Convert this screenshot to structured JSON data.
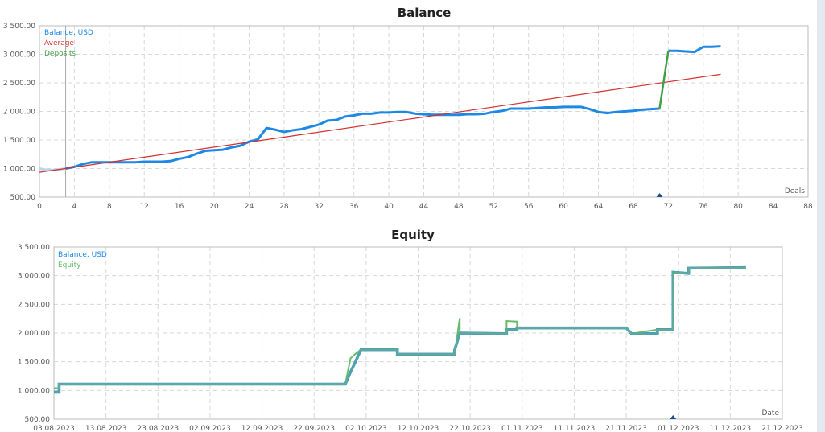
{
  "colors": {
    "balance": "#1e88e5",
    "average": "#d32f2f",
    "deposits": "#43a047",
    "equity": "#66bb6a",
    "grid": "#d8d8d8",
    "axis": "#bbbbbb"
  },
  "chart_data": [
    {
      "type": "line",
      "title": "Balance",
      "xlabel": "Deals",
      "ylabel": "",
      "xlim": [
        0,
        88
      ],
      "ylim": [
        500,
        3500
      ],
      "grid": true,
      "legend_position": "top-left",
      "x_ticks": [
        "0",
        "4",
        "8",
        "12",
        "16",
        "20",
        "24",
        "28",
        "32",
        "36",
        "40",
        "44",
        "48",
        "52",
        "56",
        "60",
        "64",
        "68",
        "72",
        "76",
        "80",
        "84",
        "88"
      ],
      "y_ticks": [
        "500.00",
        "1 000.00",
        "1 500.00",
        "2 000.00",
        "2 500.00",
        "3 000.00",
        "3 500.00"
      ],
      "legend": [
        "Balance, USD",
        "Average",
        "Deposits"
      ],
      "series": [
        {
          "name": "Balance, USD",
          "x": [
            0,
            1,
            2,
            3,
            4,
            5,
            6,
            7,
            8,
            9,
            10,
            11,
            12,
            13,
            14,
            15,
            16,
            17,
            18,
            19,
            20,
            21,
            22,
            23,
            24,
            25,
            26,
            27,
            28,
            29,
            30,
            31,
            32,
            33,
            34,
            35,
            36,
            37,
            38,
            39,
            40,
            41,
            42,
            43,
            44,
            45,
            46,
            47,
            48,
            49,
            50,
            51,
            52,
            53,
            54,
            55,
            56,
            57,
            58,
            59,
            60,
            61,
            62,
            63,
            64,
            65,
            66,
            67,
            68,
            69,
            70,
            71,
            72,
            73,
            74,
            75,
            76,
            77,
            78
          ],
          "values": [
            1000,
            970,
            980,
            1000,
            1030,
            1080,
            1110,
            1110,
            1110,
            1110,
            1110,
            1110,
            1120,
            1120,
            1120,
            1130,
            1170,
            1200,
            1260,
            1310,
            1320,
            1330,
            1370,
            1400,
            1470,
            1510,
            1710,
            1680,
            1640,
            1670,
            1690,
            1730,
            1770,
            1840,
            1850,
            1910,
            1930,
            1960,
            1960,
            1980,
            1980,
            1990,
            1990,
            1960,
            1950,
            1940,
            1940,
            1940,
            1940,
            1950,
            1950,
            1960,
            1990,
            2010,
            2050,
            2050,
            2050,
            2060,
            2070,
            2070,
            2080,
            2080,
            2080,
            2040,
            1990,
            1970,
            1990,
            2000,
            2010,
            2030,
            2040,
            2050,
            3060,
            3060,
            3050,
            3040,
            3130,
            3130,
            3140
          ]
        },
        {
          "name": "Average",
          "x": [
            0,
            78
          ],
          "values": [
            935,
            2650
          ]
        },
        {
          "name": "Deposits",
          "x": [
            71,
            72
          ],
          "values": [
            2050,
            3060
          ]
        }
      ],
      "markers": [
        {
          "x": 71,
          "shape": "triangle"
        }
      ],
      "vertical_line_x": 3
    },
    {
      "type": "line",
      "title": "Equity",
      "xlabel": "Date",
      "ylabel": "",
      "ylim": [
        500,
        3500
      ],
      "grid": true,
      "legend_position": "top-left",
      "x_ticks": [
        "03.08.2023",
        "13.08.2023",
        "23.08.2023",
        "02.09.2023",
        "12.09.2023",
        "22.09.2023",
        "02.10.2023",
        "12.10.2023",
        "22.10.2023",
        "01.11.2023",
        "11.11.2023",
        "21.11.2023",
        "01.12.2023",
        "11.12.2023",
        "21.12.2023"
      ],
      "y_ticks": [
        "500.00",
        "1 000.00",
        "1 500.00",
        "2 000.00",
        "2 500.00",
        "3 000.00",
        "3 500.00"
      ],
      "legend": [
        "Balance, USD",
        "Equity"
      ],
      "series": [
        {
          "name": "Balance, USD",
          "x": [
            "03.08.2023",
            "04.08.2023",
            "04.08.2023",
            "28.09.2023",
            "29.09.2023",
            "29.09.2023",
            "30.09.2023",
            "30.09.2023",
            "01.10.2023",
            "08.10.2023",
            "08.10.2023",
            "19.10.2023",
            "19.10.2023",
            "20.10.2023",
            "29.10.2023",
            "29.10.2023",
            "31.10.2023",
            "31.10.2023",
            "21.11.2023",
            "22.11.2023",
            "27.11.2023",
            "27.11.2023",
            "30.11.2023",
            "30.11.2023",
            "03.12.2023",
            "03.12.2023",
            "14.12.2023"
          ],
          "values": [
            970,
            970,
            1110,
            1110,
            1320,
            1320,
            1510,
            1510,
            1710,
            1710,
            1630,
            1630,
            1700,
            2000,
            1990,
            2060,
            2060,
            2090,
            2090,
            1990,
            1990,
            2060,
            2060,
            3060,
            3040,
            3130,
            3140
          ]
        },
        {
          "name": "Equity",
          "note": "closely follows Balance with short spikes",
          "x": [
            "03.08.2023",
            "04.08.2023",
            "04.08.2023",
            "18.08.2023",
            "28.09.2023",
            "29.09.2023",
            "30.09.2023",
            "01.10.2023",
            "08.10.2023",
            "08.10.2023",
            "19.10.2023",
            "20.10.2023",
            "20.10.2023",
            "29.10.2023",
            "29.10.2023",
            "31.10.2023",
            "31.10.2023",
            "21.11.2023",
            "22.11.2023",
            "27.11.2023",
            "30.11.2023",
            "30.11.2023",
            "03.12.2023",
            "03.12.2023",
            "14.12.2023"
          ],
          "values": [
            1040,
            1040,
            1110,
            1110,
            1110,
            1560,
            1640,
            1710,
            1710,
            1630,
            1630,
            2260,
            2000,
            1990,
            2210,
            2200,
            2090,
            2090,
            1990,
            2060,
            2060,
            3060,
            3040,
            3130,
            3140
          ]
        }
      ],
      "markers": [
        {
          "x": "30.11.2023",
          "shape": "triangle"
        }
      ]
    }
  ],
  "balance_chart": {
    "title": "Balance",
    "xlabel": "Deals",
    "legend": {
      "balance": "Balance, USD",
      "average": "Average",
      "deposits": "Deposits"
    }
  },
  "equity_chart": {
    "title": "Equity",
    "xlabel": "Date",
    "legend": {
      "balance": "Balance, USD",
      "equity": "Equity"
    }
  }
}
